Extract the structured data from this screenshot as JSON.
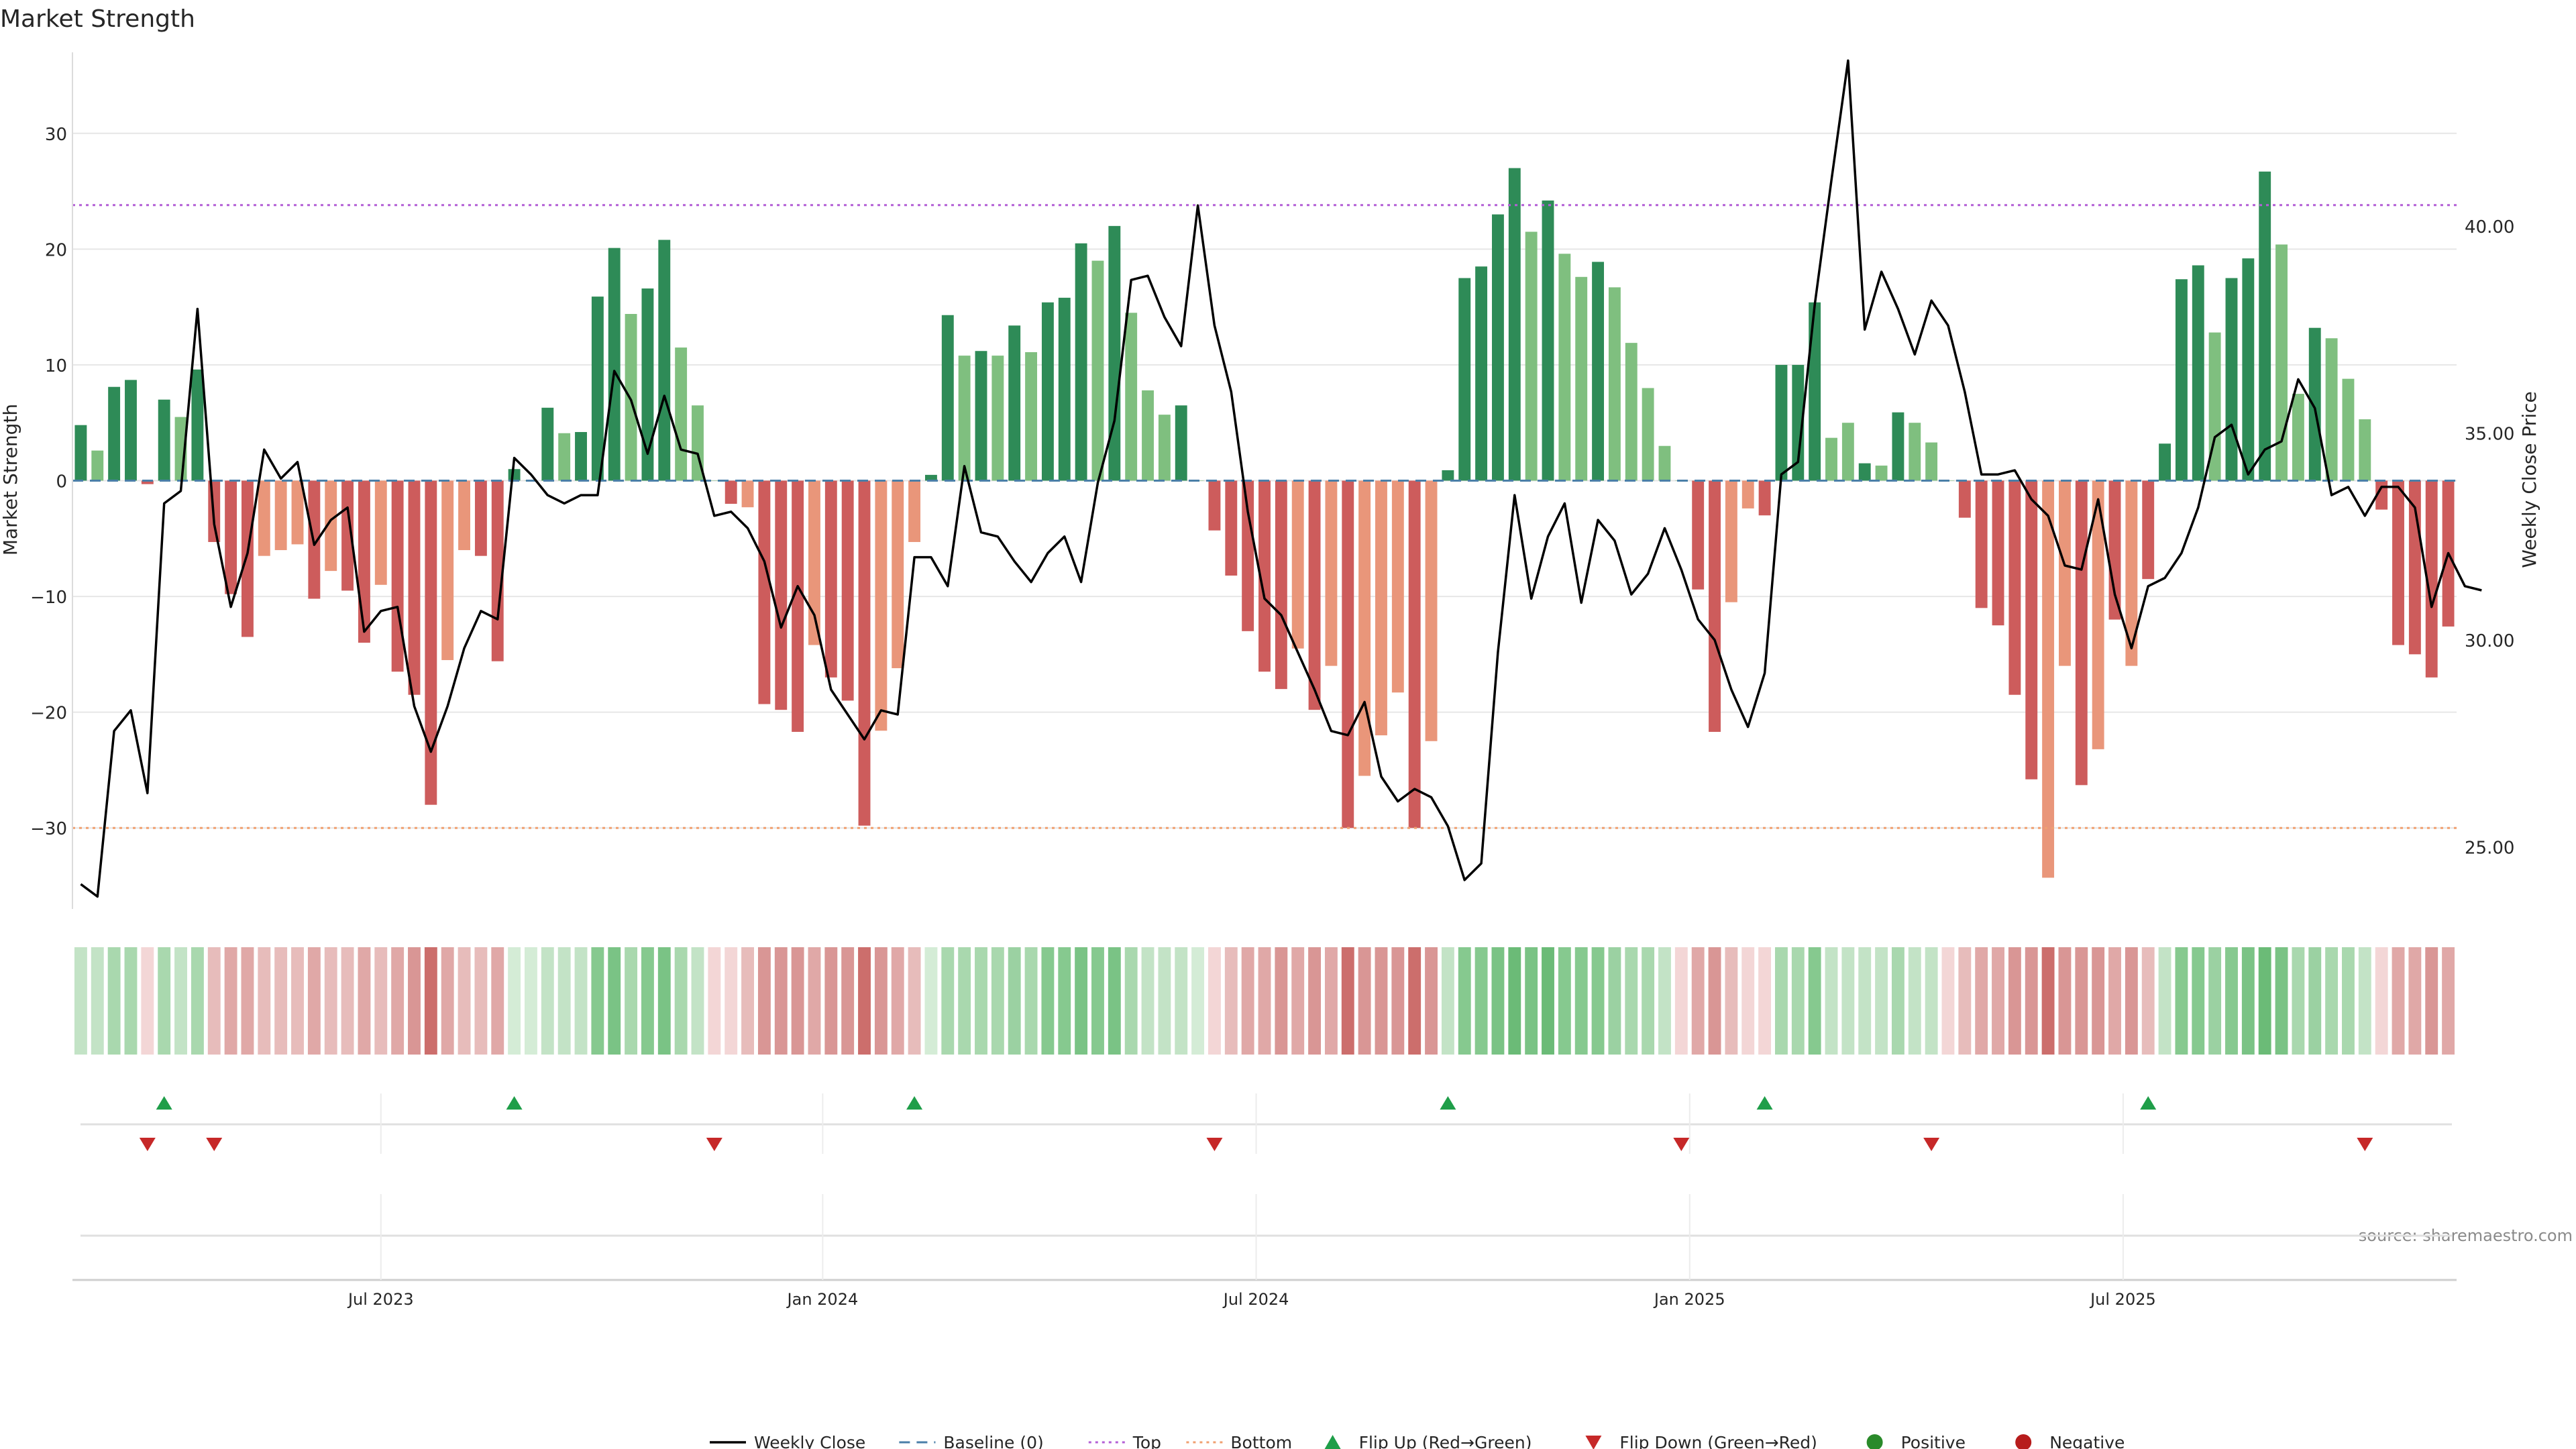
{
  "chart_data": {
    "type": "bar",
    "title": "Market Strength",
    "ylabel_left": "Market Strength",
    "ylabel_right": "Weekly Close Price",
    "source": "source: sharemaestro.com",
    "ylim_left": [
      -37,
      37
    ],
    "ylim_right": [
      23.5,
      44.2
    ],
    "yticks_left": [
      "30",
      "20",
      "10",
      "0",
      "−10",
      "−20",
      "−30"
    ],
    "yticks_left_values": [
      30,
      20,
      10,
      0,
      -10,
      -20,
      -30
    ],
    "yticks_right": [
      "40.00",
      "35.00",
      "30.00",
      "25.00"
    ],
    "yticks_right_values": [
      40,
      35,
      30,
      25
    ],
    "xticks": [
      "Jul 2023",
      "Jan 2024",
      "Jul 2024",
      "Jan 2025",
      "Jul 2025"
    ],
    "xticks_week_index": [
      18,
      44.5,
      70.5,
      96.5,
      122.5
    ],
    "top_level": 23.8,
    "bottom_level": -30,
    "strength": [
      4.8,
      2.6,
      8.1,
      8.7,
      -0.3,
      7.0,
      5.5,
      9.6,
      -5.3,
      -9.8,
      -13.5,
      -6.5,
      -6.0,
      -5.5,
      -10.2,
      -7.8,
      -9.5,
      -14.0,
      -9.0,
      -16.5,
      -18.5,
      -28.0,
      -15.5,
      -6.0,
      -6.5,
      -15.6,
      1.0,
      0.0,
      6.3,
      4.1,
      4.2,
      15.9,
      20.1,
      14.4,
      16.6,
      20.8,
      11.5,
      6.5,
      0.0,
      -2.0,
      -2.3,
      -19.3,
      -19.8,
      -21.7,
      -14.2,
      -17.0,
      -19.0,
      -29.8,
      -21.6,
      -16.2,
      -5.3,
      0.5,
      14.3,
      10.8,
      11.2,
      10.8,
      13.4,
      11.1,
      15.4,
      15.8,
      20.5,
      19.0,
      22.0,
      14.5,
      7.8,
      5.7,
      6.5,
      0.0,
      -4.3,
      -8.2,
      -13.0,
      -16.5,
      -18.0,
      -14.5,
      -19.8,
      -16.0,
      -30.0,
      -25.5,
      -22.0,
      -18.3,
      -30.0,
      -22.5,
      0.9,
      17.5,
      18.5,
      23.0,
      27.0,
      21.5,
      24.2,
      19.6,
      17.6,
      18.9,
      16.7,
      11.9,
      8.0,
      3.0,
      0.0,
      -9.4,
      -21.7,
      -10.5,
      -2.4,
      -3.0,
      10.0,
      10.0,
      15.4,
      3.7,
      5.0,
      1.5,
      1.3,
      5.9,
      5.0,
      3.3,
      0.0,
      -3.2,
      -11.0,
      -12.5,
      -18.5,
      -25.8,
      -34.3,
      -16.0,
      -26.3,
      -23.2,
      -12.0,
      -16.0,
      -8.5,
      3.2,
      17.4,
      18.6,
      12.8,
      17.5,
      19.2,
      26.7,
      20.4,
      7.5,
      13.2,
      12.3,
      8.8,
      5.3,
      -2.5,
      -14.2,
      -15.0,
      -17.0,
      -12.6
    ],
    "bar_intensity": [
      "d",
      "l",
      "d",
      "d",
      "d",
      "d",
      "l",
      "d",
      "d",
      "d",
      "d",
      "l",
      "l",
      "l",
      "d",
      "l",
      "d",
      "d",
      "l",
      "d",
      "d",
      "d",
      "l",
      "l",
      "d",
      "d",
      "d",
      "l",
      "d",
      "l",
      "d",
      "d",
      "d",
      "l",
      "d",
      "d",
      "l",
      "l",
      "l",
      "d",
      "l",
      "d",
      "d",
      "d",
      "l",
      "d",
      "d",
      "d",
      "l",
      "l",
      "l",
      "d",
      "d",
      "l",
      "d",
      "l",
      "d",
      "l",
      "d",
      "d",
      "d",
      "l",
      "d",
      "l",
      "l",
      "l",
      "d",
      "l",
      "d",
      "d",
      "d",
      "d",
      "d",
      "l",
      "d",
      "l",
      "d",
      "l",
      "l",
      "l",
      "d",
      "l",
      "d",
      "d",
      "d",
      "d",
      "d",
      "l",
      "d",
      "l",
      "l",
      "d",
      "l",
      "l",
      "l",
      "l",
      "l",
      "d",
      "d",
      "l",
      "l",
      "d",
      "d",
      "d",
      "d",
      "l",
      "l",
      "d",
      "l",
      "d",
      "l",
      "l",
      "l",
      "d",
      "d",
      "d",
      "d",
      "d",
      "l",
      "l",
      "d",
      "l",
      "d",
      "l",
      "d",
      "d",
      "d",
      "d",
      "l",
      "d",
      "d",
      "d",
      "l",
      "l",
      "d",
      "l",
      "l",
      "l",
      "d",
      "d",
      "d",
      "d",
      "d",
      "l"
    ],
    "heat_colors": [
      "#c3e3c6",
      "#c3e3c6",
      "#a9d8ae",
      "#a9d8ae",
      "#f3d6d6",
      "#a9d8ae",
      "#c3e3c6",
      "#a9d8ae",
      "#e7bcbb",
      "#e0a8a7",
      "#e0a8a7",
      "#e7bcbb",
      "#e7bcbb",
      "#e7bcbb",
      "#e0a8a7",
      "#e7bcbb",
      "#e7bcbb",
      "#e0a8a7",
      "#e7bcbb",
      "#e0a8a7",
      "#d99695",
      "#cc6e6c",
      "#e0a8a7",
      "#e7bcbb",
      "#e7bcbb",
      "#e0a8a7",
      "#d4ecd6",
      "#d4ecd6",
      "#c3e3c6",
      "#c3e3c6",
      "#c3e3c6",
      "#86c98f",
      "#7ac385",
      "#a9d8ae",
      "#86c98f",
      "#7ac385",
      "#a9d8ae",
      "#c3e3c6",
      "#f3d6d6",
      "#f3d6d6",
      "#e7bcbb",
      "#d99695",
      "#d99695",
      "#d99695",
      "#e0a8a7",
      "#d99695",
      "#d99695",
      "#cc6e6c",
      "#d99695",
      "#e0a8a7",
      "#e7bcbb",
      "#d4ecd6",
      "#a9d8ae",
      "#a9d8ae",
      "#a9d8ae",
      "#a9d8ae",
      "#9bd1a2",
      "#a9d8ae",
      "#86c98f",
      "#86c98f",
      "#7ac385",
      "#86c98f",
      "#7ac385",
      "#a9d8ae",
      "#c3e3c6",
      "#c3e3c6",
      "#c3e3c6",
      "#d4ecd6",
      "#f3d6d6",
      "#e7bcbb",
      "#e0a8a7",
      "#e0a8a7",
      "#d99695",
      "#e0a8a7",
      "#d99695",
      "#e0a8a7",
      "#cc6e6c",
      "#d99695",
      "#d99695",
      "#d99695",
      "#cc6e6c",
      "#d99695",
      "#c3e3c6",
      "#86c98f",
      "#86c98f",
      "#7ac385",
      "#6bbb77",
      "#7ac385",
      "#6bbb77",
      "#86c98f",
      "#86c98f",
      "#86c98f",
      "#9bd1a2",
      "#a9d8ae",
      "#a9d8ae",
      "#c3e3c6",
      "#f3d6d6",
      "#e0a8a7",
      "#d99695",
      "#e7bcbb",
      "#f3d6d6",
      "#f3d6d6",
      "#a9d8ae",
      "#a9d8ae",
      "#86c98f",
      "#c3e3c6",
      "#c3e3c6",
      "#c3e3c6",
      "#c3e3c6",
      "#a9d8ae",
      "#c3e3c6",
      "#c3e3c6",
      "#f3d6d6",
      "#e7bcbb",
      "#e0a8a7",
      "#e0a8a7",
      "#d99695",
      "#d99695",
      "#cc6e6c",
      "#d99695",
      "#d99695",
      "#d99695",
      "#e0a8a7",
      "#d99695",
      "#e7bcbb",
      "#c3e3c6",
      "#86c98f",
      "#86c98f",
      "#9bd1a2",
      "#86c98f",
      "#7ac385",
      "#6bbb77",
      "#7ac385",
      "#a9d8ae",
      "#9bd1a2",
      "#a9d8ae",
      "#a9d8ae",
      "#c3e3c6",
      "#f3d6d6",
      "#e0a8a7",
      "#e0a8a7",
      "#d99695",
      "#e0a8a7"
    ],
    "price": [
      24.1,
      23.8,
      27.8,
      28.3,
      26.3,
      33.3,
      33.6,
      38.0,
      32.8,
      30.8,
      32.1,
      34.6,
      33.9,
      34.3,
      32.3,
      32.9,
      33.2,
      30.2,
      30.7,
      30.8,
      28.4,
      27.3,
      28.4,
      29.8,
      30.7,
      30.5,
      34.4,
      34.0,
      33.5,
      33.3,
      33.5,
      33.5,
      36.5,
      35.8,
      34.5,
      35.9,
      34.6,
      34.5,
      33.0,
      33.1,
      32.7,
      31.9,
      30.3,
      31.3,
      30.6,
      28.8,
      28.2,
      27.6,
      28.3,
      28.2,
      32.0,
      32.0,
      31.3,
      34.2,
      32.6,
      32.5,
      31.9,
      31.4,
      32.1,
      32.5,
      31.4,
      33.8,
      35.3,
      38.7,
      38.8,
      37.8,
      37.1,
      40.5,
      37.6,
      36.0,
      33.1,
      31.0,
      30.6,
      29.7,
      28.8,
      27.8,
      27.7,
      28.5,
      26.7,
      26.1,
      26.4,
      26.2,
      25.5,
      24.2,
      24.6,
      29.7,
      33.5,
      31.0,
      32.5,
      33.3,
      30.9,
      32.9,
      32.4,
      31.1,
      31.6,
      32.7,
      31.7,
      30.5,
      30.0,
      28.8,
      27.9,
      29.2,
      34.0,
      34.3,
      38.1,
      41.1,
      44.0,
      37.5,
      38.9,
      38.0,
      36.9,
      38.2,
      37.6,
      36.0,
      34.0,
      34.0,
      34.1,
      33.4,
      33.0,
      31.8,
      31.7,
      33.4,
      31.1,
      29.8,
      31.3,
      31.5,
      32.1,
      33.2,
      34.9,
      35.2,
      34.0,
      34.6,
      34.8,
      36.3,
      35.6,
      33.5,
      33.7,
      33.0,
      33.7,
      33.7,
      33.2,
      30.8,
      32.1,
      31.3,
      31.2
    ],
    "flip_up_weeks": [
      5,
      26,
      50,
      82,
      101,
      124
    ],
    "flip_down_weeks": [
      4,
      8,
      38,
      68,
      96,
      111,
      137
    ],
    "legend": {
      "weekly_close": "Weekly Close",
      "baseline": "Baseline (0)",
      "top": "Top",
      "bottom": "Bottom",
      "flip_up": "Flip Up (Red→Green)",
      "flip_down": "Flip Down (Green→Red)",
      "positive": "Positive",
      "negative": "Negative"
    },
    "colors": {
      "pos_dark": "#2e8b57",
      "pos_light": "#7fbf7f",
      "neg_dark": "#cd5c5c",
      "neg_light": "#e9967a",
      "price_line": "#000000",
      "baseline": "#4a7fa8",
      "top_line": "#b35fd6",
      "bottom_line": "#f0a070",
      "flip_up": "#1f9e49",
      "flip_down": "#c62828",
      "positive_dot": "#2a8a2a",
      "negative_dot": "#b71c1c",
      "grid": "#e6e6e6",
      "text": "#262626"
    }
  }
}
